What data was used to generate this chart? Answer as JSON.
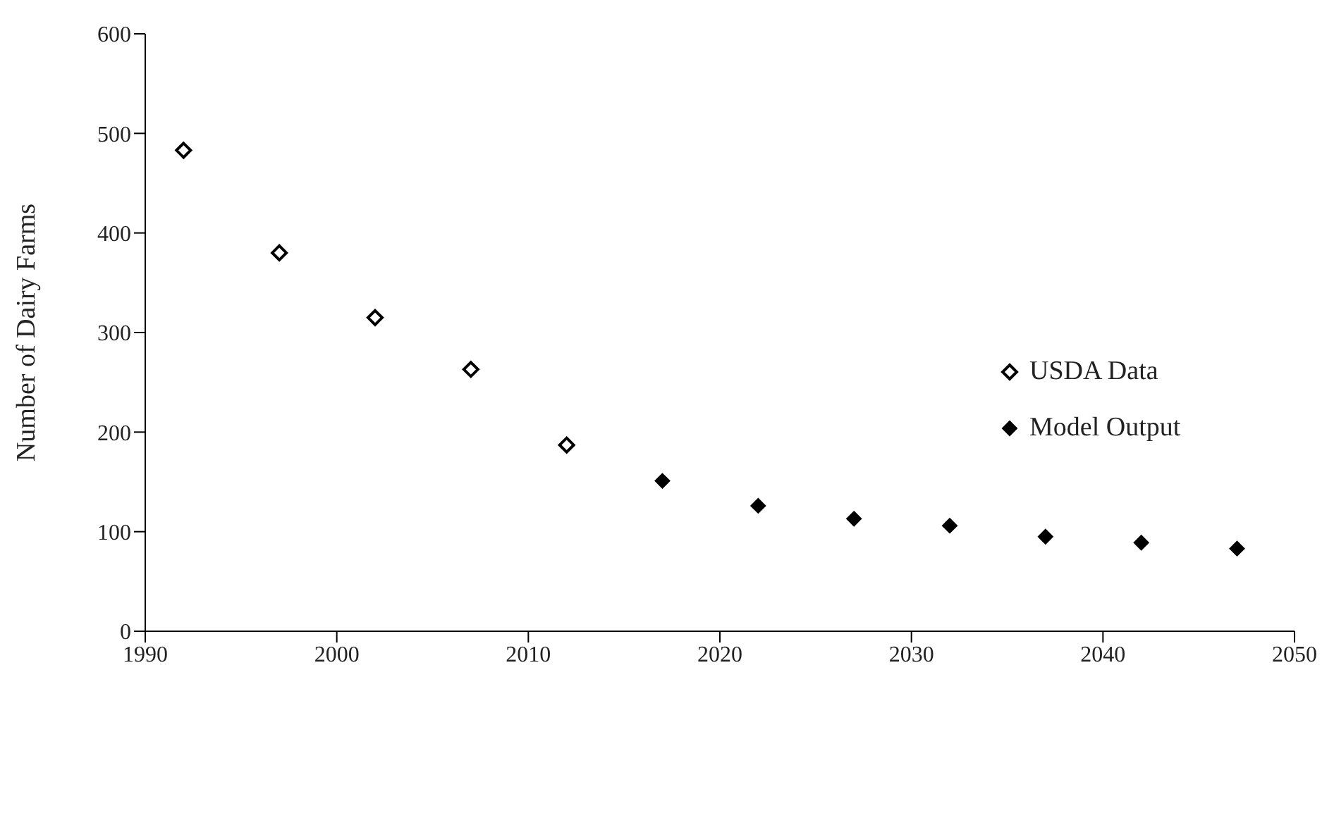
{
  "chart_data": {
    "type": "scatter",
    "ylabel": "Number of Dairy Farms",
    "xlim": [
      1990,
      2050
    ],
    "xticks": [
      1990,
      2000,
      2010,
      2020,
      2030,
      2040,
      2050
    ],
    "ylim": [
      0,
      600
    ],
    "yticks": [
      0,
      100,
      200,
      300,
      400,
      500,
      600
    ],
    "grid": false,
    "legend": "right",
    "marker": "diamond",
    "series": [
      {
        "name": "USDA Data",
        "color": "#000000",
        "x": [
          1992,
          1997,
          2002,
          2007,
          2012
        ],
        "values": [
          483,
          380,
          315,
          263,
          187
        ]
      },
      {
        "name": "Model Output",
        "color": "#000000",
        "x": [
          2017,
          2022,
          2027,
          2032,
          2037,
          2042,
          2047
        ],
        "values": [
          151,
          126,
          113,
          106,
          95,
          89,
          83
        ]
      }
    ]
  }
}
